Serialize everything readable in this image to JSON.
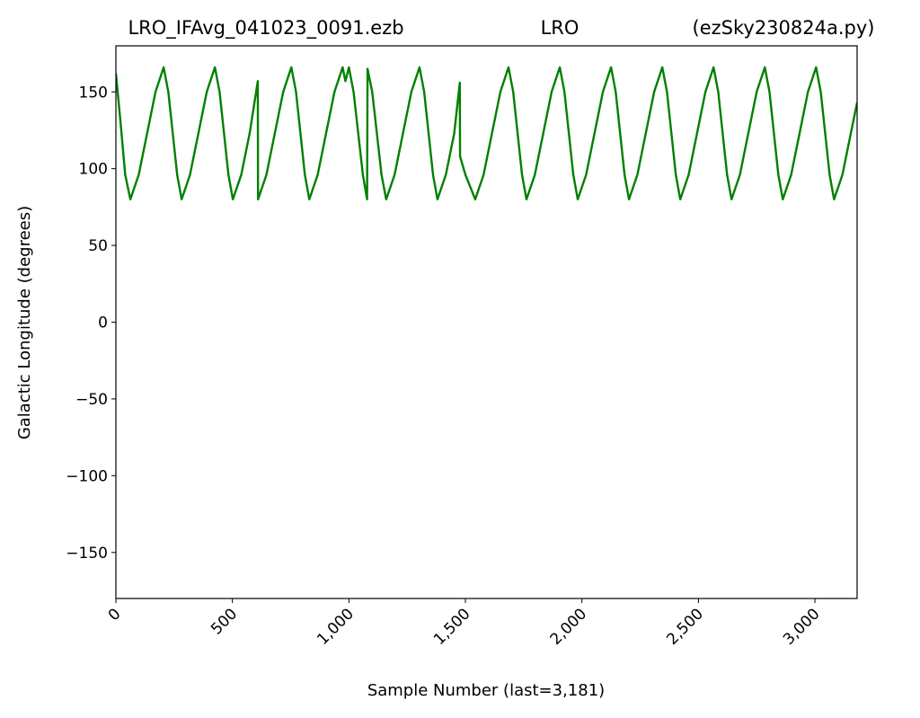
{
  "chart_data": {
    "type": "line",
    "title": [
      "LRO_IFAvg_041023_0091.ezb",
      "LRO",
      "(ezSky230824a.py)"
    ],
    "x_label": "Sample Number (last=3,181)",
    "y_label": "Galactic Longitude (degrees)",
    "xlim": [
      0,
      3181
    ],
    "ylim": [
      -180,
      180
    ],
    "xticks": [
      0,
      500,
      {
        "value": 1000,
        "label": "1,000"
      },
      {
        "value": 1500,
        "label": "1,500"
      },
      {
        "value": 2000,
        "label": "2,000"
      },
      {
        "value": 2500,
        "label": "2,500"
      },
      {
        "value": 3000,
        "label": "3,000"
      }
    ],
    "yticks": [
      {
        "value": -150,
        "label": "−150"
      },
      {
        "value": -100,
        "label": "−100"
      },
      {
        "value": -50,
        "label": "−50"
      },
      0,
      50,
      100,
      150
    ],
    "series": [
      {
        "color": "#008000",
        "x": [
          0,
          20,
          40,
          62,
          98,
          134,
          170,
          205,
          225,
          244,
          263,
          282,
          318,
          354,
          390,
          425,
          445,
          464,
          483,
          502,
          538,
          574,
          609,
          610,
          646,
          682,
          718,
          753,
          773,
          792,
          811,
          830,
          866,
          902,
          938,
          973,
          985,
          1000,
          1020,
          1040,
          1060,
          1078,
          1080,
          1100,
          1120,
          1140,
          1160,
          1196,
          1232,
          1268,
          1303,
          1323,
          1342,
          1361,
          1380,
          1416,
          1452,
          1476,
          1477,
          1500,
          1542,
          1578,
          1614,
          1650,
          1685,
          1705,
          1724,
          1743,
          1762,
          1798,
          1834,
          1870,
          1905,
          1925,
          1944,
          1963,
          1982,
          2018,
          2054,
          2090,
          2125,
          2145,
          2164,
          2183,
          2202,
          2238,
          2274,
          2310,
          2345,
          2365,
          2384,
          2403,
          2422,
          2458,
          2494,
          2530,
          2565,
          2585,
          2604,
          2623,
          2642,
          2678,
          2714,
          2750,
          2785,
          2805,
          2824,
          2843,
          2862,
          2898,
          2934,
          2970,
          3005,
          3025,
          3044,
          3063,
          3082,
          3118,
          3154,
          3181
        ],
        "values": [
          162,
          130,
          96,
          80,
          96,
          123,
          150,
          166,
          150,
          123,
          96,
          80,
          96,
          123,
          150,
          166,
          150,
          123,
          96,
          80,
          96,
          123,
          157,
          80,
          96,
          123,
          150,
          166,
          150,
          123,
          96,
          80,
          96,
          123,
          150,
          166,
          157,
          166,
          150,
          123,
          96,
          80,
          165,
          150,
          123,
          96,
          80,
          96,
          123,
          150,
          166,
          150,
          123,
          96,
          80,
          96,
          123,
          156,
          108,
          96,
          80,
          96,
          123,
          150,
          166,
          150,
          123,
          96,
          80,
          96,
          123,
          150,
          166,
          150,
          123,
          96,
          80,
          96,
          123,
          150,
          166,
          150,
          123,
          96,
          80,
          96,
          123,
          150,
          166,
          150,
          123,
          96,
          80,
          96,
          123,
          150,
          166,
          150,
          123,
          96,
          80,
          96,
          123,
          150,
          166,
          150,
          123,
          96,
          80,
          96,
          123,
          150,
          166,
          150,
          123,
          96,
          80,
          96,
          123,
          143
        ]
      }
    ]
  }
}
